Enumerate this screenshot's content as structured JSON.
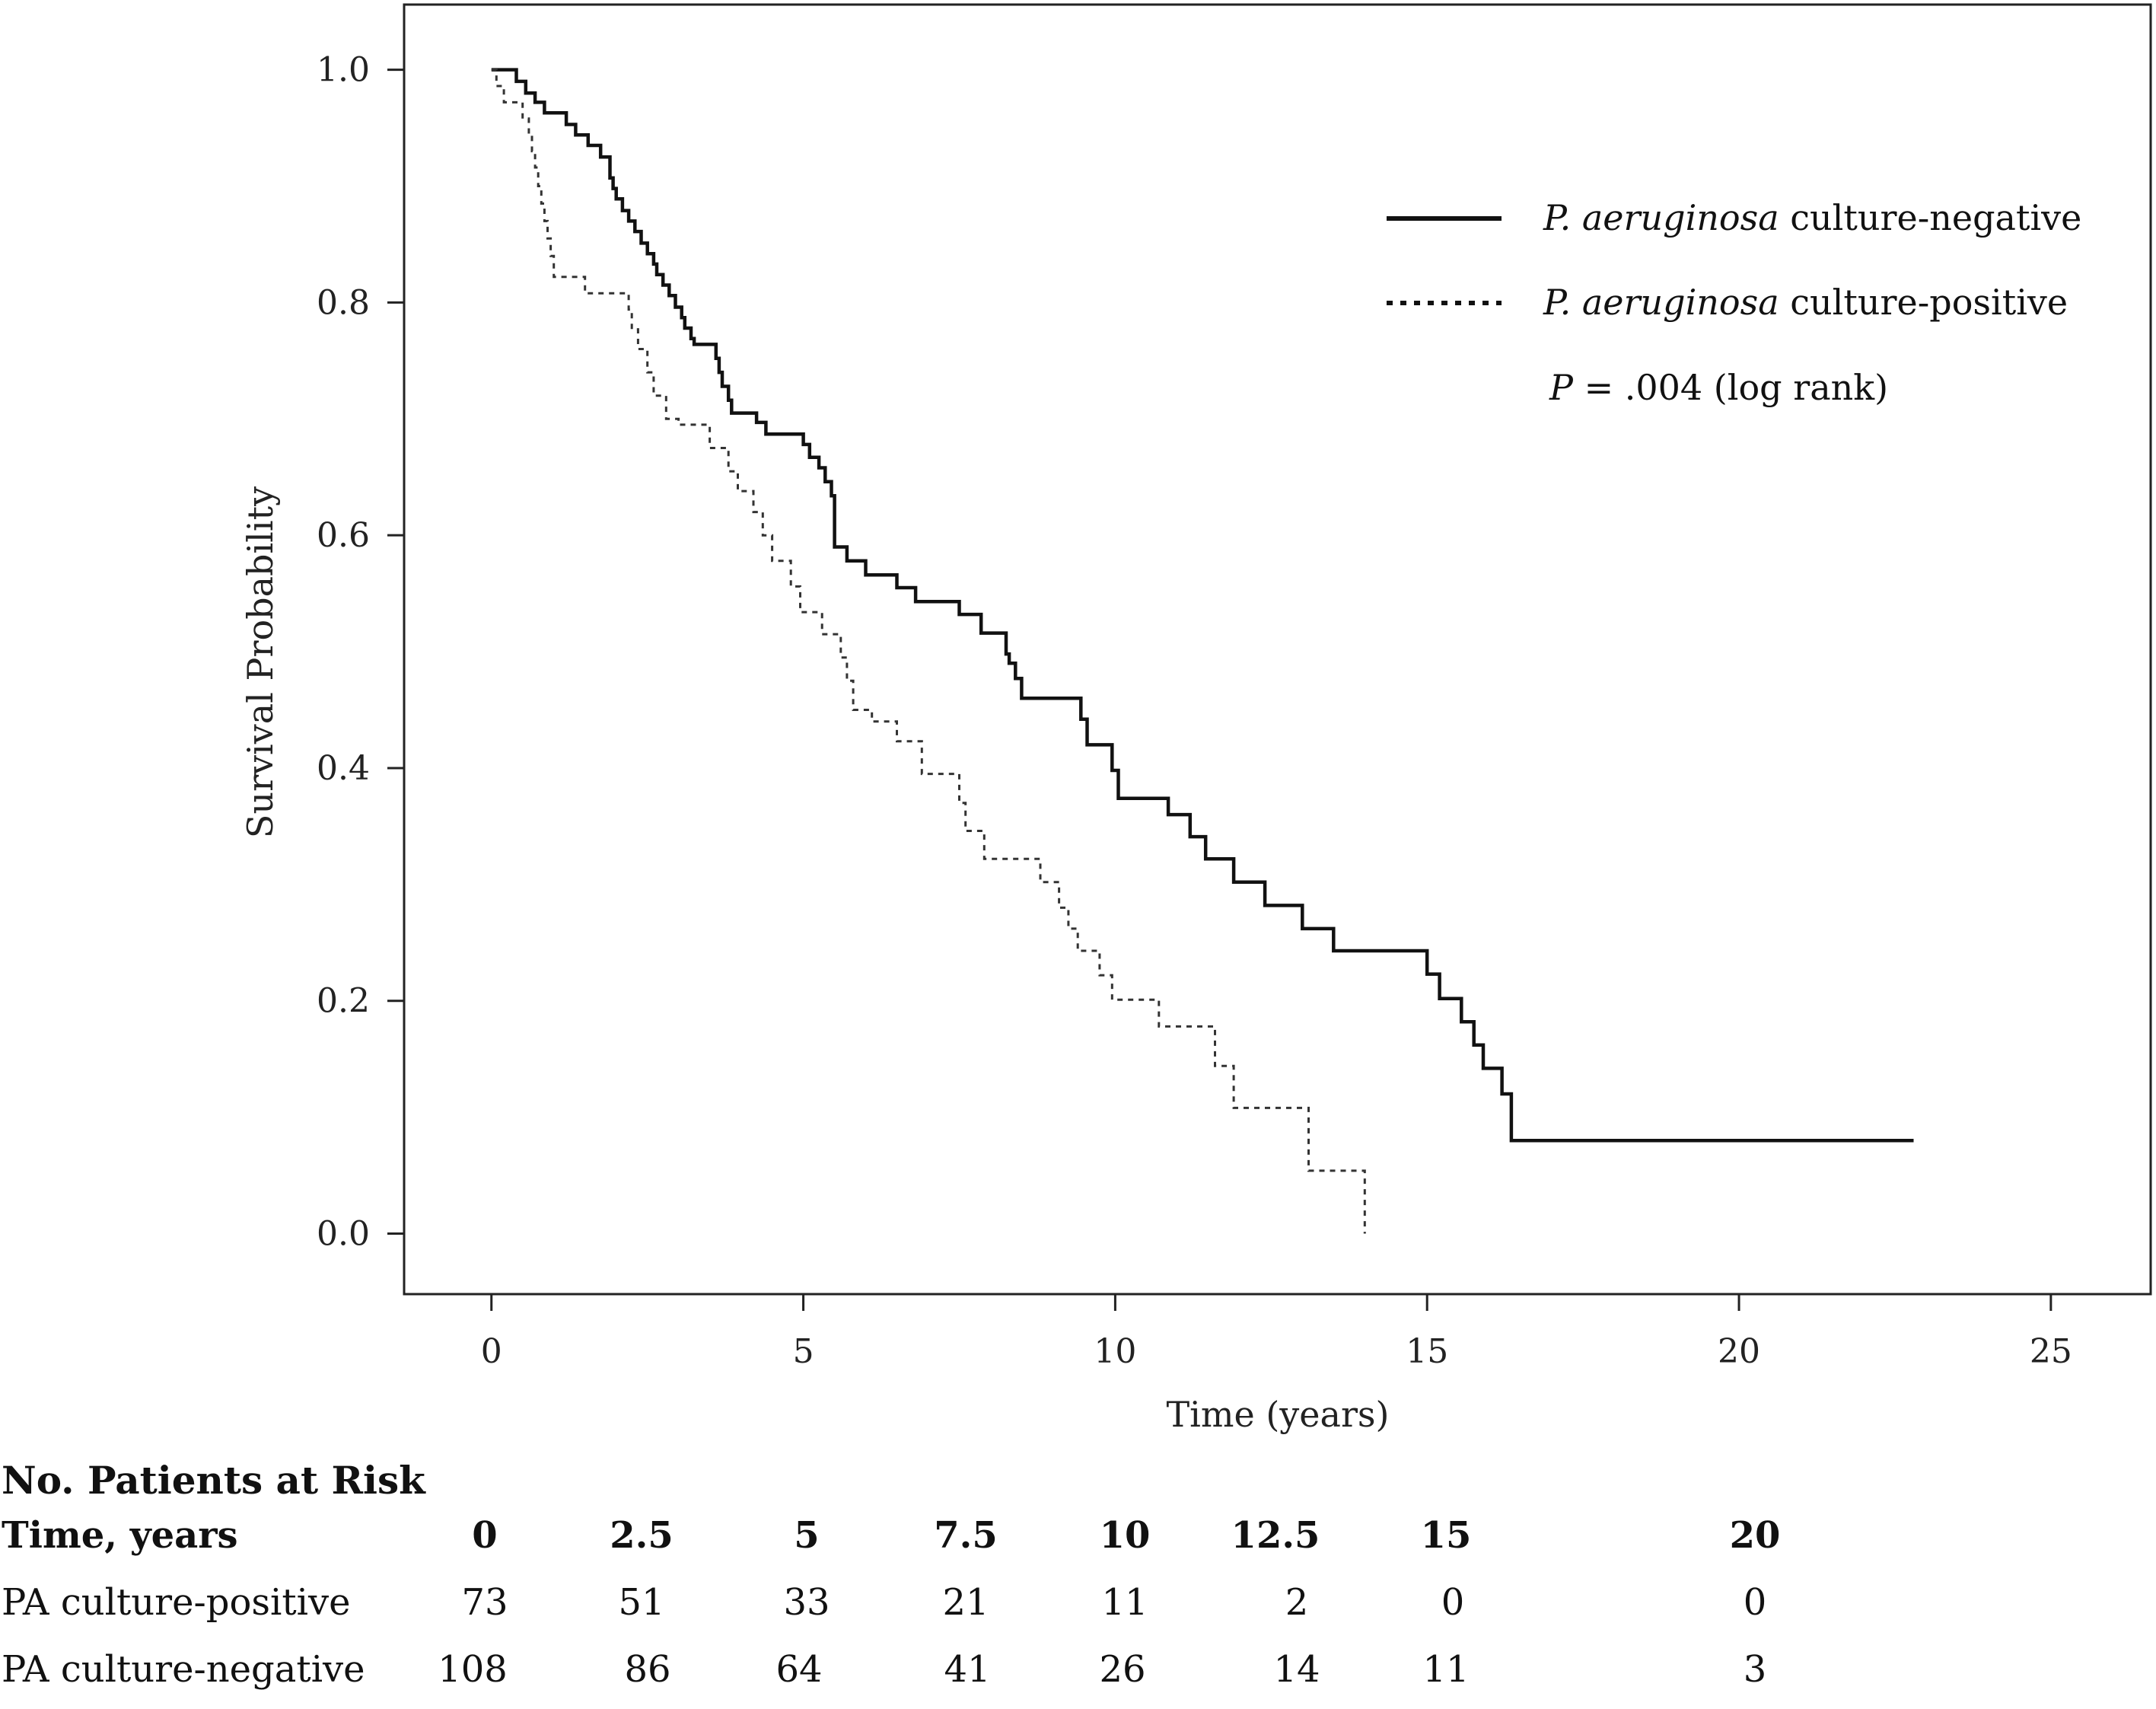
{
  "chart_data": {
    "type": "line",
    "subtype": "kaplan-meier",
    "title": "",
    "xlabel": "Time (years)",
    "ylabel": "Survival Probability",
    "xlim": [
      -1.4,
      26.6
    ],
    "ylim": [
      -0.052,
      1.056
    ],
    "xticks": [
      "0",
      "5",
      "10",
      "15",
      "20",
      "25"
    ],
    "yticks": [
      "1.0",
      "0.8",
      "0.6",
      "0.4",
      "0.2",
      "0.0"
    ],
    "grid": false,
    "legend_position": "top-right",
    "annotation": {
      "prefix": "P",
      "text": " = .004 (log rank)"
    },
    "series": [
      {
        "name_italic": "P. aeruginosa",
        "name_rest": " culture-negative",
        "style": "solid",
        "color": "#111111",
        "steps": [
          [
            0,
            1.0
          ],
          [
            0.4,
            0.99
          ],
          [
            0.55,
            0.98
          ],
          [
            0.7,
            0.972
          ],
          [
            0.85,
            0.963
          ],
          [
            1.2,
            0.953
          ],
          [
            1.35,
            0.944
          ],
          [
            1.55,
            0.935
          ],
          [
            1.75,
            0.925
          ],
          [
            1.9,
            0.907
          ],
          [
            1.95,
            0.898
          ],
          [
            2.0,
            0.889
          ],
          [
            2.1,
            0.879
          ],
          [
            2.2,
            0.87
          ],
          [
            2.3,
            0.861
          ],
          [
            2.4,
            0.851
          ],
          [
            2.5,
            0.842
          ],
          [
            2.6,
            0.833
          ],
          [
            2.65,
            0.824
          ],
          [
            2.75,
            0.815
          ],
          [
            2.85,
            0.806
          ],
          [
            2.95,
            0.796
          ],
          [
            3.05,
            0.787
          ],
          [
            3.1,
            0.778
          ],
          [
            3.2,
            0.769
          ],
          [
            3.25,
            0.764
          ],
          [
            3.6,
            0.752
          ],
          [
            3.65,
            0.74
          ],
          [
            3.7,
            0.728
          ],
          [
            3.8,
            0.716
          ],
          [
            3.85,
            0.705
          ],
          [
            4.25,
            0.697
          ],
          [
            4.4,
            0.687
          ],
          [
            5.0,
            0.678
          ],
          [
            5.1,
            0.667
          ],
          [
            5.25,
            0.658
          ],
          [
            5.35,
            0.646
          ],
          [
            5.45,
            0.634
          ],
          [
            5.5,
            0.59
          ],
          [
            5.7,
            0.578
          ],
          [
            6.0,
            0.566
          ],
          [
            6.5,
            0.555
          ],
          [
            6.8,
            0.543
          ],
          [
            7.5,
            0.532
          ],
          [
            7.85,
            0.516
          ],
          [
            8.25,
            0.498
          ],
          [
            8.3,
            0.49
          ],
          [
            8.4,
            0.477
          ],
          [
            8.5,
            0.46
          ],
          [
            9.45,
            0.442
          ],
          [
            9.55,
            0.42
          ],
          [
            9.95,
            0.398
          ],
          [
            10.05,
            0.374
          ],
          [
            10.85,
            0.36
          ],
          [
            11.2,
            0.341
          ],
          [
            11.45,
            0.322
          ],
          [
            11.9,
            0.302
          ],
          [
            12.4,
            0.282
          ],
          [
            13.0,
            0.262
          ],
          [
            13.5,
            0.243
          ],
          [
            15.0,
            0.223
          ],
          [
            15.2,
            0.202
          ],
          [
            15.55,
            0.182
          ],
          [
            15.75,
            0.162
          ],
          [
            15.9,
            0.142
          ],
          [
            16.2,
            0.12
          ],
          [
            16.35,
            0.08
          ],
          [
            22.8,
            0.08
          ]
        ]
      },
      {
        "name_italic": "P. aeruginosa",
        "name_rest": " culture-positive",
        "style": "dotted",
        "color": "#333333",
        "steps": [
          [
            0,
            1.0
          ],
          [
            0.08,
            0.986
          ],
          [
            0.2,
            0.972
          ],
          [
            0.5,
            0.958
          ],
          [
            0.6,
            0.944
          ],
          [
            0.65,
            0.93
          ],
          [
            0.7,
            0.916
          ],
          [
            0.75,
            0.9
          ],
          [
            0.8,
            0.885
          ],
          [
            0.85,
            0.87
          ],
          [
            0.9,
            0.855
          ],
          [
            0.95,
            0.84
          ],
          [
            1.0,
            0.822
          ],
          [
            1.5,
            0.808
          ],
          [
            2.2,
            0.794
          ],
          [
            2.25,
            0.777
          ],
          [
            2.35,
            0.76
          ],
          [
            2.5,
            0.74
          ],
          [
            2.6,
            0.72
          ],
          [
            2.8,
            0.7
          ],
          [
            3.0,
            0.695
          ],
          [
            3.5,
            0.675
          ],
          [
            3.8,
            0.655
          ],
          [
            3.95,
            0.638
          ],
          [
            4.2,
            0.62
          ],
          [
            4.35,
            0.6
          ],
          [
            4.5,
            0.578
          ],
          [
            4.8,
            0.556
          ],
          [
            4.95,
            0.534
          ],
          [
            5.3,
            0.515
          ],
          [
            5.6,
            0.495
          ],
          [
            5.7,
            0.475
          ],
          [
            5.8,
            0.45
          ],
          [
            6.1,
            0.44
          ],
          [
            6.5,
            0.423
          ],
          [
            6.9,
            0.395
          ],
          [
            7.5,
            0.37
          ],
          [
            7.6,
            0.346
          ],
          [
            7.9,
            0.322
          ],
          [
            8.8,
            0.302
          ],
          [
            9.1,
            0.28
          ],
          [
            9.25,
            0.262
          ],
          [
            9.4,
            0.243
          ],
          [
            9.75,
            0.222
          ],
          [
            9.95,
            0.201
          ],
          [
            10.7,
            0.178
          ],
          [
            11.6,
            0.144
          ],
          [
            11.9,
            0.108
          ],
          [
            13.1,
            0.054
          ],
          [
            14.0,
            0.0
          ]
        ]
      }
    ]
  },
  "risk_table": {
    "title": "No. Patients at Risk",
    "header_label": "Time, years",
    "time_points": [
      "0",
      "2.5",
      "5",
      "7.5",
      "10",
      "12.5",
      "15",
      "20"
    ],
    "rows": [
      {
        "label": "PA culture-positive",
        "values": [
          "73",
          "51",
          "33",
          "21",
          "11",
          "2",
          "0",
          "0"
        ]
      },
      {
        "label": "PA culture-negative",
        "values": [
          "108",
          "86",
          "64",
          "41",
          "26",
          "14",
          "11",
          "3"
        ]
      }
    ]
  }
}
